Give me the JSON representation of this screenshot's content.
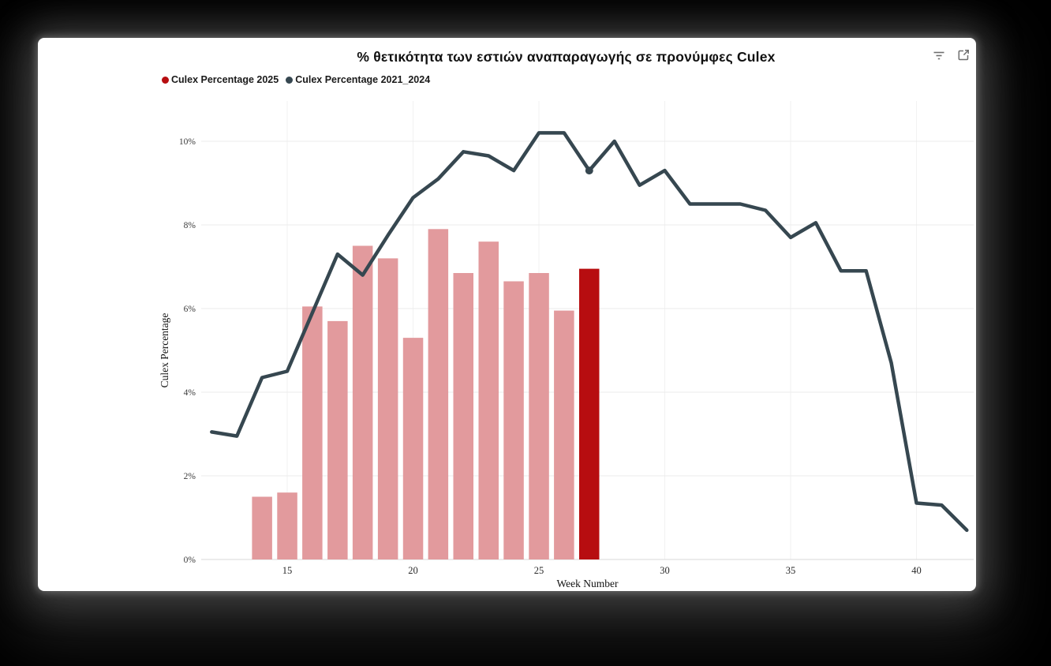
{
  "chart": {
    "title": "% θετικότητα των εστιών αναπαραγωγής σε προνύμφες Culex",
    "legend": [
      {
        "label": "Culex Percentage 2025",
        "color": "#b70d10"
      },
      {
        "label": "Culex Percentage 2021_2024",
        "color": "#364750"
      }
    ],
    "toolbar": {
      "icons": [
        "filter-icon",
        "expand-icon"
      ]
    }
  },
  "chart_data": {
    "type": "combo_bar_line",
    "title": "% θετικότητα των εστιών αναπαραγωγής σε προνύμφες Culex",
    "xlabel": "Week Number",
    "ylabel": "Culex Percentage",
    "x_ticks": [
      15,
      20,
      25,
      30,
      35,
      40
    ],
    "y_ticks": [
      0,
      2,
      4,
      6,
      8,
      10
    ],
    "y_tick_suffix": "%",
    "xlim": [
      11.6,
      42.6
    ],
    "ylim": [
      0,
      10.45
    ],
    "grid": true,
    "legend_position": "top-left",
    "series": [
      {
        "name": "Culex Percentage 2025",
        "type": "bar",
        "color": "#e29a9d",
        "highlight_color": "#b70d10",
        "highlight_week": 27,
        "weeks": [
          14,
          15,
          16,
          17,
          18,
          19,
          20,
          21,
          22,
          23,
          24,
          25,
          26,
          27
        ],
        "values": [
          1.5,
          1.6,
          6.05,
          5.7,
          7.5,
          7.2,
          5.3,
          7.9,
          6.85,
          7.6,
          6.65,
          6.85,
          5.95,
          6.95
        ]
      },
      {
        "name": "Culex Percentage 2021_2024",
        "type": "line",
        "color": "#364750",
        "marker_week": 27,
        "weeks": [
          12,
          13,
          14,
          15,
          16,
          17,
          18,
          19,
          20,
          21,
          22,
          23,
          24,
          25,
          26,
          27,
          28,
          29,
          30,
          31,
          32,
          33,
          34,
          35,
          36,
          37,
          38,
          39,
          40,
          41,
          42
        ],
        "values": [
          3.05,
          2.95,
          4.35,
          4.5,
          5.9,
          7.3,
          6.8,
          7.75,
          8.65,
          9.1,
          9.75,
          9.65,
          9.3,
          10.2,
          10.2,
          9.3,
          10.0,
          8.95,
          9.3,
          8.5,
          8.5,
          8.5,
          8.35,
          7.7,
          8.05,
          6.9,
          6.9,
          4.7,
          1.35,
          1.3,
          0.7
        ]
      }
    ]
  }
}
